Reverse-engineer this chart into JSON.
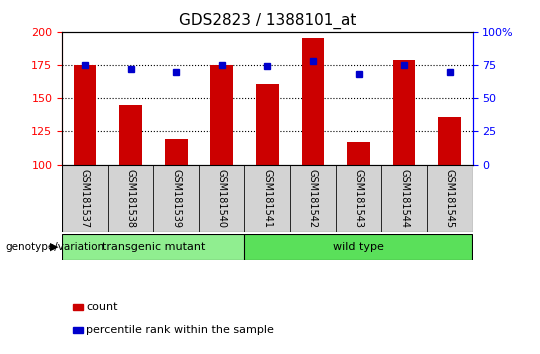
{
  "title": "GDS2823 / 1388101_at",
  "samples": [
    "GSM181537",
    "GSM181538",
    "GSM181539",
    "GSM181540",
    "GSM181541",
    "GSM181542",
    "GSM181543",
    "GSM181544",
    "GSM181545"
  ],
  "counts": [
    175,
    145,
    119,
    175,
    161,
    195,
    117,
    179,
    136
  ],
  "percentile_ranks": [
    75,
    72,
    70,
    75,
    74,
    78,
    68,
    75,
    70
  ],
  "ylim_left": [
    100,
    200
  ],
  "ylim_right": [
    0,
    100
  ],
  "yticks_left": [
    100,
    125,
    150,
    175,
    200
  ],
  "yticks_right": [
    0,
    25,
    50,
    75,
    100
  ],
  "groups": [
    {
      "label": "transgenic mutant",
      "start": 0,
      "end": 3,
      "color": "#90EE90"
    },
    {
      "label": "wild type",
      "start": 4,
      "end": 8,
      "color": "#5AE05A"
    }
  ],
  "group_label": "genotype/variation",
  "bar_color": "#CC0000",
  "dot_color": "#0000CC",
  "bar_width": 0.5,
  "legend_items": [
    {
      "label": "count",
      "color": "#CC0000"
    },
    {
      "label": "percentile rank within the sample",
      "color": "#0000CC"
    }
  ],
  "background_color": "#ffffff",
  "tick_area_color": "#d3d3d3",
  "title_fontsize": 11
}
